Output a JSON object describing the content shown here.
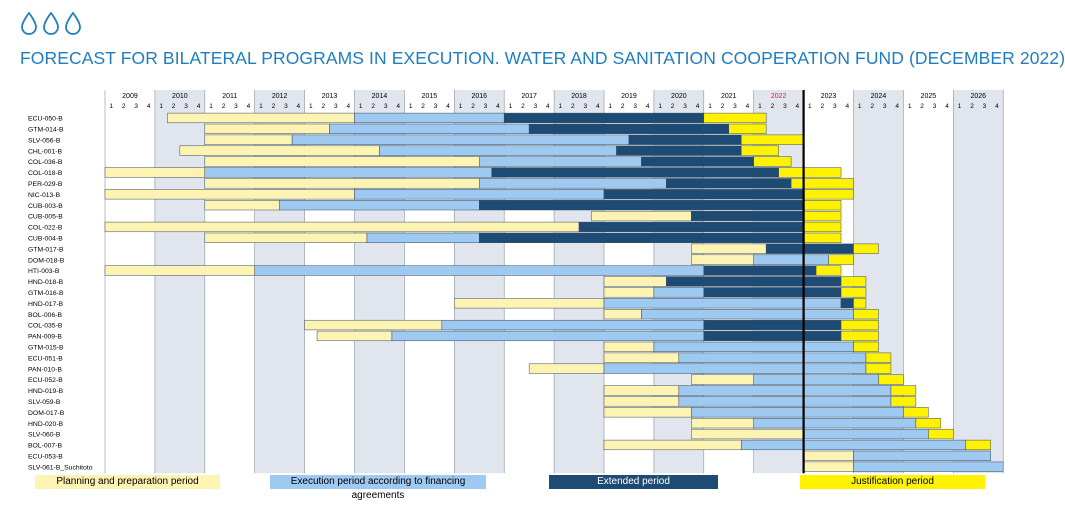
{
  "title": "FORECAST FOR BILATERAL PROGRAMS IN EXECUTION. WATER AND SANITATION COOPERATION FUND (DECEMBER 2022)",
  "icon": "water-drops-icon",
  "colors": {
    "planning": "#fdf3b3",
    "execution": "#9ec9f0",
    "extended": "#1e4b74",
    "justification": "#fff200",
    "title": "#1f7dc2",
    "current_year": "#d9262b",
    "shade": "#e1e5ed",
    "border": "#3a4a5c"
  },
  "legend": [
    {
      "key": "planning",
      "label": "Planning and preparation period"
    },
    {
      "key": "execution",
      "label": "Execution period according to financing agreements"
    },
    {
      "key": "extended",
      "label": "Extended period"
    },
    {
      "key": "justification",
      "label": "Justification period"
    }
  ],
  "chart_data": {
    "type": "gantt",
    "time_unit": "quarter",
    "years": [
      2009,
      2010,
      2011,
      2012,
      2013,
      2014,
      2015,
      2016,
      2017,
      2018,
      2019,
      2020,
      2021,
      2022,
      2023,
      2024,
      2025,
      2026
    ],
    "quarter_labels": [
      "1",
      "2",
      "3",
      "4"
    ],
    "current_year": 2022,
    "today_marker": "2023 Q1",
    "rows": [
      {
        "id": "ECU-050-B",
        "segments": [
          {
            "phase": "planning",
            "start": "2010 Q2",
            "end": "2013 Q4"
          },
          {
            "phase": "execution",
            "start": "2014 Q1",
            "end": "2016 Q4"
          },
          {
            "phase": "extended",
            "start": "2017 Q1",
            "end": "2020 Q4"
          },
          {
            "phase": "justification",
            "start": "2021 Q1",
            "end": "2022 Q1"
          }
        ]
      },
      {
        "id": "GTM-014-B",
        "segments": [
          {
            "phase": "planning",
            "start": "2011 Q1",
            "end": "2013 Q2"
          },
          {
            "phase": "execution",
            "start": "2013 Q3",
            "end": "2017 Q2"
          },
          {
            "phase": "extended",
            "start": "2017 Q3",
            "end": "2021 Q2"
          },
          {
            "phase": "justification",
            "start": "2021 Q3",
            "end": "2022 Q1"
          }
        ]
      },
      {
        "id": "SLV-056-B",
        "segments": [
          {
            "phase": "planning",
            "start": "2011 Q1",
            "end": "2012 Q3"
          },
          {
            "phase": "execution",
            "start": "2012 Q4",
            "end": "2019 Q2"
          },
          {
            "phase": "extended",
            "start": "2019 Q3",
            "end": "2021 Q3"
          },
          {
            "phase": "justification",
            "start": "2021 Q4",
            "end": "2022 Q4"
          }
        ]
      },
      {
        "id": "CHL-001-B",
        "segments": [
          {
            "phase": "planning",
            "start": "2010 Q3",
            "end": "2014 Q2"
          },
          {
            "phase": "execution",
            "start": "2014 Q3",
            "end": "2019 Q1"
          },
          {
            "phase": "extended",
            "start": "2019 Q2",
            "end": "2021 Q3"
          },
          {
            "phase": "justification",
            "start": "2021 Q4",
            "end": "2022 Q2"
          }
        ]
      },
      {
        "id": "COL-036-B",
        "segments": [
          {
            "phase": "planning",
            "start": "2011 Q1",
            "end": "2016 Q2"
          },
          {
            "phase": "execution",
            "start": "2016 Q3",
            "end": "2019 Q3"
          },
          {
            "phase": "extended",
            "start": "2019 Q4",
            "end": "2021 Q4"
          },
          {
            "phase": "justification",
            "start": "2022 Q1",
            "end": "2022 Q3"
          }
        ]
      },
      {
        "id": "COL-018-B",
        "segments": [
          {
            "phase": "planning",
            "start": "2009 Q1",
            "end": "2010 Q4"
          },
          {
            "phase": "execution",
            "start": "2011 Q1",
            "end": "2016 Q3"
          },
          {
            "phase": "extended",
            "start": "2016 Q4",
            "end": "2022 Q2"
          },
          {
            "phase": "justification",
            "start": "2022 Q3",
            "end": "2023 Q3"
          }
        ]
      },
      {
        "id": "PER-029-B",
        "segments": [
          {
            "phase": "planning",
            "start": "2011 Q1",
            "end": "2016 Q2"
          },
          {
            "phase": "execution",
            "start": "2016 Q3",
            "end": "2020 Q1"
          },
          {
            "phase": "extended",
            "start": "2020 Q2",
            "end": "2022 Q3"
          },
          {
            "phase": "justification",
            "start": "2022 Q4",
            "end": "2023 Q4"
          }
        ]
      },
      {
        "id": "NIC-013-B",
        "segments": [
          {
            "phase": "planning",
            "start": "2009 Q1",
            "end": "2013 Q4"
          },
          {
            "phase": "execution",
            "start": "2014 Q1",
            "end": "2018 Q4"
          },
          {
            "phase": "extended",
            "start": "2019 Q1",
            "end": "2022 Q4"
          },
          {
            "phase": "justification",
            "start": "2023 Q1",
            "end": "2023 Q4"
          }
        ]
      },
      {
        "id": "CUB-003-B",
        "segments": [
          {
            "phase": "planning",
            "start": "2011 Q1",
            "end": "2012 Q2"
          },
          {
            "phase": "execution",
            "start": "2012 Q3",
            "end": "2016 Q2"
          },
          {
            "phase": "extended",
            "start": "2016 Q3",
            "end": "2022 Q4"
          },
          {
            "phase": "justification",
            "start": "2023 Q1",
            "end": "2023 Q3"
          }
        ]
      },
      {
        "id": "CUB-005-B",
        "segments": [
          {
            "phase": "planning",
            "start": "2018 Q4",
            "end": "2020 Q3"
          },
          {
            "phase": "extended",
            "start": "2020 Q4",
            "end": "2022 Q4"
          },
          {
            "phase": "justification",
            "start": "2023 Q1",
            "end": "2023 Q3"
          }
        ]
      },
      {
        "id": "COL-022-B",
        "segments": [
          {
            "phase": "planning",
            "start": "2009 Q1",
            "end": "2018 Q2"
          },
          {
            "phase": "extended",
            "start": "2018 Q3",
            "end": "2022 Q4"
          },
          {
            "phase": "justification",
            "start": "2023 Q1",
            "end": "2023 Q3"
          }
        ]
      },
      {
        "id": "CUB-004-B",
        "segments": [
          {
            "phase": "planning",
            "start": "2011 Q1",
            "end": "2014 Q1"
          },
          {
            "phase": "execution",
            "start": "2014 Q2",
            "end": "2016 Q2"
          },
          {
            "phase": "extended",
            "start": "2016 Q3",
            "end": "2022 Q4"
          },
          {
            "phase": "justification",
            "start": "2023 Q1",
            "end": "2023 Q3"
          }
        ]
      },
      {
        "id": "GTM-017-B",
        "segments": [
          {
            "phase": "planning",
            "start": "2020 Q4",
            "end": "2022 Q1"
          },
          {
            "phase": "extended",
            "start": "2022 Q2",
            "end": "2023 Q4"
          },
          {
            "phase": "justification",
            "start": "2024 Q1",
            "end": "2024 Q2"
          }
        ]
      },
      {
        "id": "DOM-018-B",
        "segments": [
          {
            "phase": "planning",
            "start": "2020 Q4",
            "end": "2021 Q4"
          },
          {
            "phase": "execution",
            "start": "2022 Q1",
            "end": "2023 Q2"
          },
          {
            "phase": "justification",
            "start": "2023 Q3",
            "end": "2023 Q4"
          }
        ]
      },
      {
        "id": "HTI-003-B",
        "segments": [
          {
            "phase": "planning",
            "start": "2009 Q1",
            "end": "2011 Q4"
          },
          {
            "phase": "execution",
            "start": "2012 Q1",
            "end": "2020 Q4"
          },
          {
            "phase": "extended",
            "start": "2021 Q1",
            "end": "2023 Q1"
          },
          {
            "phase": "justification",
            "start": "2023 Q2",
            "end": "2023 Q3"
          }
        ]
      },
      {
        "id": "HND-018-B",
        "segments": [
          {
            "phase": "planning",
            "start": "2019 Q1",
            "end": "2020 Q1"
          },
          {
            "phase": "extended",
            "start": "2020 Q2",
            "end": "2023 Q3"
          },
          {
            "phase": "justification",
            "start": "2023 Q4",
            "end": "2024 Q1"
          }
        ]
      },
      {
        "id": "GTM-016-B",
        "segments": [
          {
            "phase": "planning",
            "start": "2019 Q1",
            "end": "2019 Q4"
          },
          {
            "phase": "execution",
            "start": "2020 Q1",
            "end": "2020 Q4"
          },
          {
            "phase": "extended",
            "start": "2021 Q1",
            "end": "2023 Q3"
          },
          {
            "phase": "justification",
            "start": "2023 Q4",
            "end": "2024 Q1"
          }
        ]
      },
      {
        "id": "HND-017-B",
        "segments": [
          {
            "phase": "planning",
            "start": "2016 Q1",
            "end": "2018 Q4"
          },
          {
            "phase": "execution",
            "start": "2019 Q1",
            "end": "2023 Q3"
          },
          {
            "phase": "extended",
            "start": "2023 Q4",
            "end": "2023 Q4"
          },
          {
            "phase": "justification",
            "start": "2024 Q1",
            "end": "2024 Q1"
          }
        ]
      },
      {
        "id": "BOL-006-B",
        "segments": [
          {
            "phase": "planning",
            "start": "2019 Q1",
            "end": "2019 Q3"
          },
          {
            "phase": "execution",
            "start": "2019 Q4",
            "end": "2023 Q4"
          },
          {
            "phase": "justification",
            "start": "2024 Q1",
            "end": "2024 Q2"
          }
        ]
      },
      {
        "id": "COL-035-B",
        "segments": [
          {
            "phase": "planning",
            "start": "2013 Q1",
            "end": "2015 Q3"
          },
          {
            "phase": "execution",
            "start": "2015 Q4",
            "end": "2020 Q4"
          },
          {
            "phase": "extended",
            "start": "2021 Q1",
            "end": "2023 Q3"
          },
          {
            "phase": "justification",
            "start": "2023 Q4",
            "end": "2024 Q2"
          }
        ]
      },
      {
        "id": "PAN-009-B",
        "segments": [
          {
            "phase": "planning",
            "start": "2013 Q2",
            "end": "2014 Q3"
          },
          {
            "phase": "execution",
            "start": "2014 Q4",
            "end": "2020 Q4"
          },
          {
            "phase": "extended",
            "start": "2021 Q1",
            "end": "2023 Q3"
          },
          {
            "phase": "justification",
            "start": "2023 Q4",
            "end": "2024 Q2"
          }
        ]
      },
      {
        "id": "GTM-015-B",
        "segments": [
          {
            "phase": "planning",
            "start": "2019 Q1",
            "end": "2019 Q4"
          },
          {
            "phase": "execution",
            "start": "2020 Q1",
            "end": "2023 Q4"
          },
          {
            "phase": "justification",
            "start": "2024 Q1",
            "end": "2024 Q2"
          }
        ]
      },
      {
        "id": "ECU-051-B",
        "segments": [
          {
            "phase": "planning",
            "start": "2019 Q1",
            "end": "2020 Q2"
          },
          {
            "phase": "execution",
            "start": "2020 Q3",
            "end": "2024 Q1"
          },
          {
            "phase": "justification",
            "start": "2024 Q2",
            "end": "2024 Q3"
          }
        ]
      },
      {
        "id": "PAN-010-B",
        "segments": [
          {
            "phase": "planning",
            "start": "2017 Q3",
            "end": "2018 Q4"
          },
          {
            "phase": "execution",
            "start": "2019 Q1",
            "end": "2024 Q1"
          },
          {
            "phase": "justification",
            "start": "2024 Q2",
            "end": "2024 Q3"
          }
        ]
      },
      {
        "id": "ECU-052-B",
        "segments": [
          {
            "phase": "planning",
            "start": "2020 Q4",
            "end": "2021 Q4"
          },
          {
            "phase": "execution",
            "start": "2022 Q1",
            "end": "2024 Q2"
          },
          {
            "phase": "justification",
            "start": "2024 Q3",
            "end": "2024 Q4"
          }
        ]
      },
      {
        "id": "HND-019-B",
        "segments": [
          {
            "phase": "planning",
            "start": "2019 Q1",
            "end": "2020 Q2"
          },
          {
            "phase": "execution",
            "start": "2020 Q3",
            "end": "2024 Q3"
          },
          {
            "phase": "justification",
            "start": "2024 Q4",
            "end": "2025 Q1"
          }
        ]
      },
      {
        "id": "SLV-059-B",
        "segments": [
          {
            "phase": "planning",
            "start": "2019 Q1",
            "end": "2020 Q2"
          },
          {
            "phase": "execution",
            "start": "2020 Q3",
            "end": "2024 Q3"
          },
          {
            "phase": "justification",
            "start": "2024 Q4",
            "end": "2025 Q1"
          }
        ]
      },
      {
        "id": "DOM-017-B",
        "segments": [
          {
            "phase": "planning",
            "start": "2019 Q1",
            "end": "2020 Q3"
          },
          {
            "phase": "execution",
            "start": "2020 Q4",
            "end": "2024 Q4"
          },
          {
            "phase": "justification",
            "start": "2025 Q1",
            "end": "2025 Q2"
          }
        ]
      },
      {
        "id": "HND-020-B",
        "segments": [
          {
            "phase": "planning",
            "start": "2020 Q4",
            "end": "2021 Q4"
          },
          {
            "phase": "execution",
            "start": "2022 Q1",
            "end": "2025 Q1"
          },
          {
            "phase": "justification",
            "start": "2025 Q2",
            "end": "2025 Q3"
          }
        ]
      },
      {
        "id": "SLV-060-B",
        "segments": [
          {
            "phase": "planning",
            "start": "2020 Q4",
            "end": "2022 Q4"
          },
          {
            "phase": "execution",
            "start": "2023 Q1",
            "end": "2025 Q2"
          },
          {
            "phase": "justification",
            "start": "2025 Q3",
            "end": "2025 Q4"
          }
        ]
      },
      {
        "id": "BOL-007-B",
        "segments": [
          {
            "phase": "planning",
            "start": "2019 Q1",
            "end": "2021 Q3"
          },
          {
            "phase": "execution",
            "start": "2021 Q4",
            "end": "2026 Q1"
          },
          {
            "phase": "justification",
            "start": "2026 Q2",
            "end": "2026 Q3"
          }
        ]
      },
      {
        "id": "ECU-053-B",
        "segments": [
          {
            "phase": "planning",
            "start": "2023 Q1",
            "end": "2023 Q4"
          },
          {
            "phase": "execution",
            "start": "2024 Q1",
            "end": "2026 Q3"
          }
        ]
      },
      {
        "id": "SLV-061-B_Suchitoto",
        "segments": [
          {
            "phase": "planning",
            "start": "2023 Q1",
            "end": "2023 Q4"
          },
          {
            "phase": "execution",
            "start": "2024 Q1",
            "end": "2026 Q4"
          }
        ]
      }
    ]
  }
}
